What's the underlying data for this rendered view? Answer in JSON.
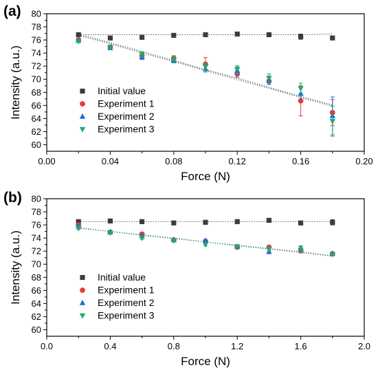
{
  "chart_data": [
    {
      "type": "scatter",
      "panel_label": "(a)",
      "xlabel": "Force (N)",
      "ylabel": "Intensity (a.u.)",
      "xlim": [
        0.0,
        0.2
      ],
      "ylim": [
        59,
        80
      ],
      "xticks": [
        "0.00",
        "0.04",
        "0.08",
        "0.12",
        "0.16",
        "0.20"
      ],
      "xtick_values": [
        0.0,
        0.04,
        0.08,
        0.12,
        0.16,
        0.2
      ],
      "yticks": [
        "60",
        "62",
        "64",
        "66",
        "68",
        "70",
        "72",
        "74",
        "76",
        "78",
        "80"
      ],
      "ytick_values": [
        60,
        62,
        64,
        66,
        68,
        70,
        72,
        74,
        76,
        78,
        80
      ],
      "legend_position": "lower-left",
      "x": [
        0.02,
        0.04,
        0.06,
        0.08,
        0.1,
        0.12,
        0.14,
        0.16,
        0.18
      ],
      "series": [
        {
          "name": "Initial value",
          "color": "#3c3c3c",
          "marker": "square",
          "values": [
            76.8,
            76.3,
            76.4,
            76.7,
            76.8,
            76.9,
            76.8,
            76.5,
            76.3
          ],
          "errors": [
            0.15,
            0.2,
            0.25,
            0.15,
            0.15,
            0.15,
            0.15,
            0.4,
            0.2
          ],
          "fit": [
            76.8,
            76.8,
            76.8,
            76.8,
            76.8,
            76.8,
            76.8,
            76.8,
            76.9
          ]
        },
        {
          "name": "Experiment 1",
          "color": "#e8393b",
          "marker": "circle",
          "values": [
            76.0,
            74.9,
            73.6,
            73.2,
            72.3,
            70.8,
            69.7,
            66.7,
            64.9
          ],
          "errors": [
            0.3,
            0.3,
            0.4,
            0.4,
            1.0,
            0.5,
            0.5,
            2.3,
            2.0
          ],
          "fit": [
            76.7,
            75.4,
            74.0,
            72.7,
            71.3,
            69.9,
            68.6,
            67.2,
            65.8
          ]
        },
        {
          "name": "Experiment 2",
          "color": "#1f6fd1",
          "marker": "triangle-up",
          "values": [
            75.9,
            74.8,
            73.4,
            72.9,
            71.6,
            71.3,
            69.8,
            67.8,
            64.4
          ],
          "errors": [
            0.2,
            0.3,
            0.4,
            0.4,
            0.5,
            0.6,
            0.6,
            0.9,
            2.9
          ],
          "fit": [
            76.8,
            75.5,
            74.1,
            72.8,
            71.4,
            70.1,
            68.7,
            67.3,
            66.0
          ]
        },
        {
          "name": "Experiment 3",
          "color": "#21a86e",
          "marker": "triangle-down",
          "values": [
            75.8,
            74.9,
            73.8,
            73.0,
            71.9,
            71.5,
            70.2,
            68.6,
            63.6
          ],
          "errors": [
            0.2,
            0.3,
            0.4,
            0.4,
            0.6,
            0.6,
            0.6,
            0.8,
            2.3
          ],
          "fit": [
            77.0,
            75.6,
            74.3,
            72.9,
            71.5,
            70.2,
            68.8,
            67.4,
            66.1
          ]
        }
      ]
    },
    {
      "type": "scatter",
      "panel_label": "(b)",
      "xlabel": "Force (N)",
      "ylabel": "Intensity (a.u.)",
      "xlim": [
        0.0,
        2.0
      ],
      "ylim": [
        59,
        80
      ],
      "xticks": [
        "0.0",
        "0.4",
        "0.8",
        "1.2",
        "1.6",
        "2.0"
      ],
      "xtick_values": [
        0.0,
        0.4,
        0.8,
        1.2,
        1.6,
        2.0
      ],
      "yticks": [
        "60",
        "62",
        "64",
        "66",
        "68",
        "70",
        "72",
        "74",
        "76",
        "78",
        "80"
      ],
      "ytick_values": [
        60,
        62,
        64,
        66,
        68,
        70,
        72,
        74,
        76,
        78,
        80
      ],
      "legend_position": "lower-left",
      "x": [
        0.2,
        0.4,
        0.6,
        0.8,
        1.0,
        1.2,
        1.4,
        1.6,
        1.8
      ],
      "series": [
        {
          "name": "Initial value",
          "color": "#3c3c3c",
          "marker": "square",
          "values": [
            76.5,
            76.6,
            76.5,
            76.3,
            76.4,
            76.5,
            76.7,
            76.3,
            76.4
          ],
          "errors": [
            0.2,
            0.15,
            0.15,
            0.15,
            0.15,
            0.15,
            0.15,
            0.15,
            0.4
          ],
          "fit": [
            76.5,
            76.5,
            76.5,
            76.5,
            76.5,
            76.5,
            76.5,
            76.5,
            76.5
          ]
        },
        {
          "name": "Experiment 1",
          "color": "#e8393b",
          "marker": "circle",
          "values": [
            76.0,
            74.9,
            74.6,
            73.7,
            73.5,
            72.6,
            72.6,
            72.1,
            71.6
          ],
          "errors": [
            0.2,
            0.2,
            0.2,
            0.2,
            0.2,
            0.2,
            0.2,
            0.3,
            0.2
          ],
          "fit": [
            75.6,
            75.0,
            74.5,
            74.0,
            73.4,
            72.9,
            72.4,
            71.9,
            71.3
          ]
        },
        {
          "name": "Experiment 2",
          "color": "#1f6fd1",
          "marker": "triangle-up",
          "values": [
            75.8,
            74.9,
            74.3,
            73.7,
            73.6,
            72.7,
            71.9,
            72.4,
            71.6
          ],
          "errors": [
            0.2,
            0.2,
            0.2,
            0.2,
            0.2,
            0.2,
            0.3,
            0.4,
            0.2
          ],
          "fit": [
            75.5,
            75.0,
            74.4,
            73.9,
            73.4,
            72.8,
            72.3,
            71.8,
            71.2
          ]
        },
        {
          "name": "Experiment 3",
          "color": "#21a86e",
          "marker": "triangle-down",
          "values": [
            75.5,
            74.8,
            74.0,
            73.6,
            73.0,
            72.7,
            72.3,
            72.2,
            71.5
          ],
          "errors": [
            0.2,
            0.2,
            0.2,
            0.2,
            0.2,
            0.2,
            0.3,
            0.5,
            0.2
          ],
          "fit": [
            75.6,
            75.0,
            74.5,
            74.0,
            73.4,
            72.9,
            72.4,
            71.8,
            71.3
          ]
        }
      ]
    }
  ]
}
